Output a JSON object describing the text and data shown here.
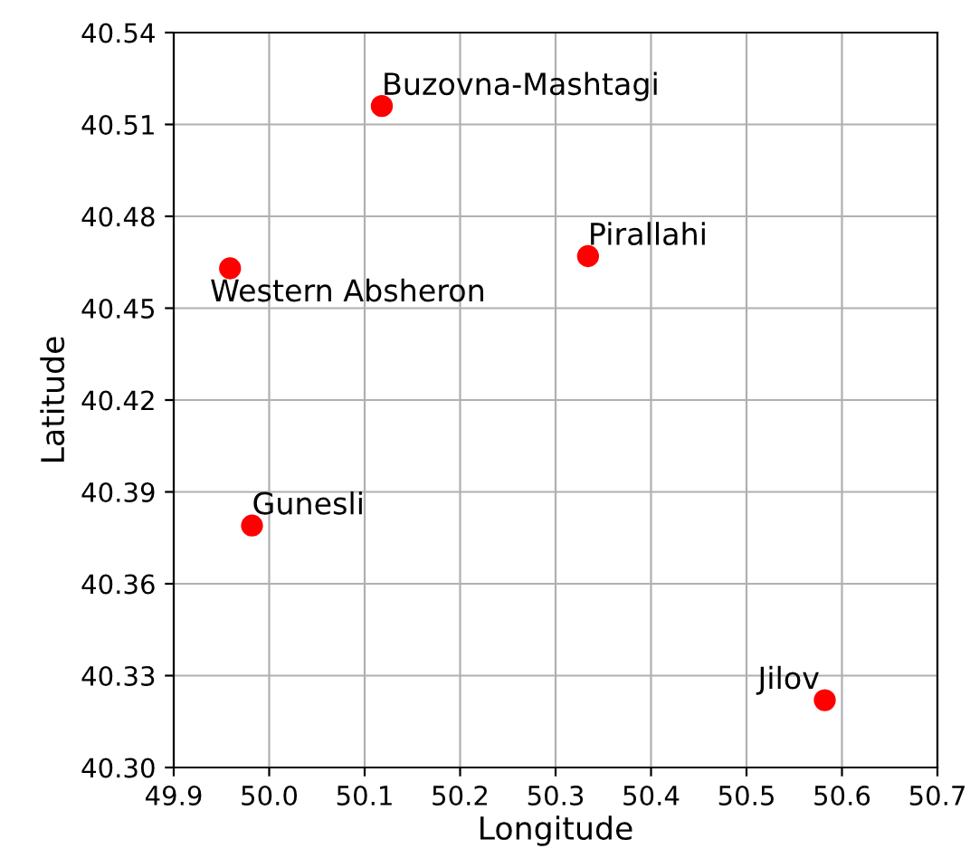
{
  "chart_data": {
    "type": "scatter",
    "xlabel": "Longitude",
    "ylabel": "Latitude",
    "x": [
      50.118,
      49.959,
      50.334,
      49.982,
      50.582
    ],
    "series": [
      {
        "color": "#ff0000",
        "values": [
          40.516,
          40.463,
          40.467,
          40.379,
          40.322
        ]
      }
    ],
    "annotations": [
      {
        "text": "Buzovna-Mashtagi",
        "x": 50.118,
        "y": 40.516
      },
      {
        "text": "Western Absheron",
        "x": 49.959,
        "y": 40.463
      },
      {
        "text": "Pirallahi",
        "x": 50.334,
        "y": 40.467
      },
      {
        "text": "Gunesli",
        "x": 49.982,
        "y": 40.379
      },
      {
        "text": "Jilov",
        "x": 50.582,
        "y": 40.322
      }
    ],
    "xlim": [
      49.9,
      50.7
    ],
    "xticks": [
      49.9,
      {
        "value": 50.0,
        "label": "50.0"
      },
      50.1,
      50.2,
      50.3,
      50.4,
      50.5,
      50.6,
      50.7
    ],
    "ylim": [
      40.3,
      40.54
    ],
    "yticks": [
      {
        "value": 40.3,
        "label": "40.30"
      },
      40.33,
      40.36,
      40.39,
      40.42,
      40.45,
      40.48,
      40.51,
      40.54
    ],
    "grid": true,
    "marker": "circle"
  }
}
